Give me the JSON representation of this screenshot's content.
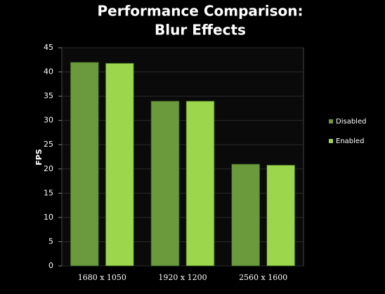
{
  "chart_data": {
    "type": "bar",
    "title": [
      "Performance Comparison:",
      "Blur Effects"
    ],
    "y_label": "FPS",
    "categories": [
      "1680 x 1050",
      "1920 x 1200",
      "2560 x 1600"
    ],
    "series": [
      {
        "name": "Disabled",
        "color": "#6b9a3c",
        "values": [
          42,
          34,
          21
        ]
      },
      {
        "name": "Enabled",
        "color": "#9bd64c",
        "values": [
          41.8,
          34,
          20.8
        ]
      }
    ],
    "ylim": [
      0,
      45
    ],
    "yticks": [
      0,
      5,
      10,
      15,
      20,
      25,
      30,
      35,
      40,
      45
    ],
    "grid": true,
    "legend": "right"
  }
}
